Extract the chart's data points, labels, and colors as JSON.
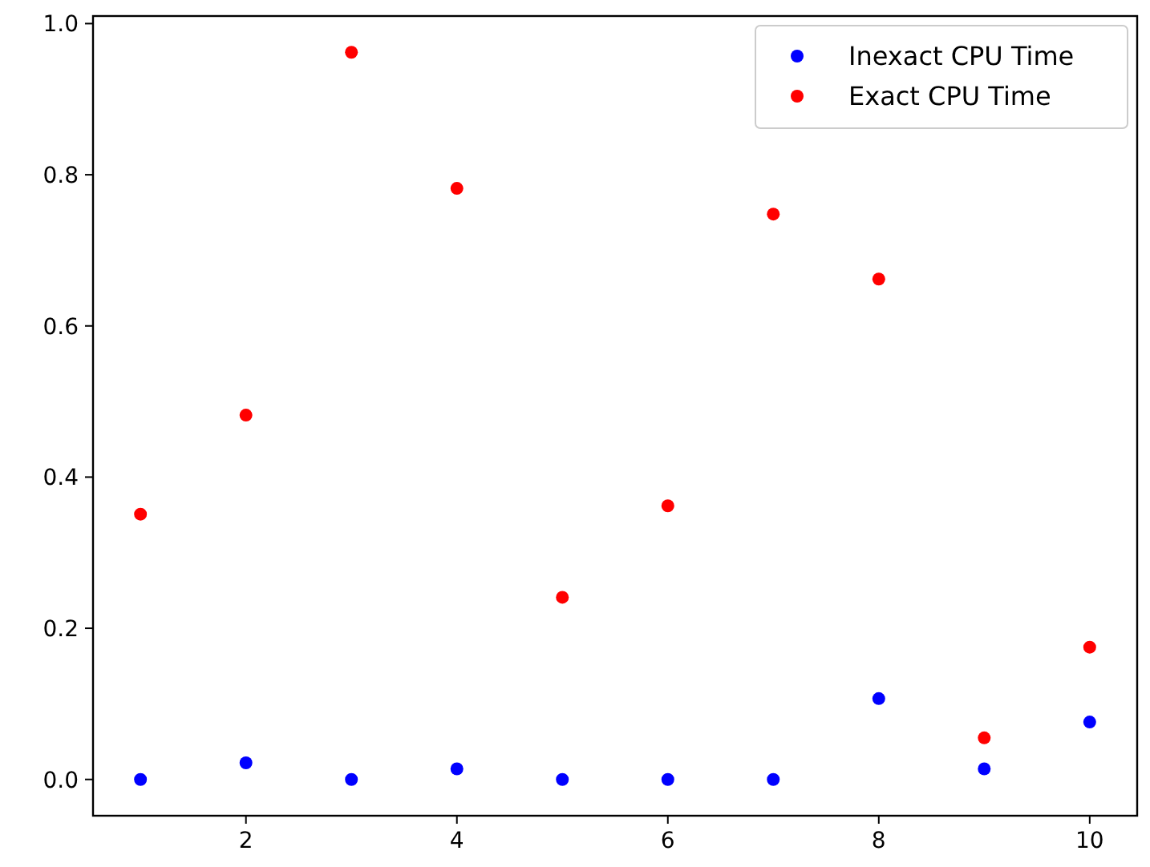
{
  "chart_data": {
    "type": "scatter",
    "x": [
      1,
      2,
      3,
      4,
      5,
      6,
      7,
      8,
      9,
      10
    ],
    "series": [
      {
        "name": "Inexact CPU Time",
        "color": "#0000ff",
        "values": [
          0,
          0.022,
          0,
          0.014,
          0,
          0,
          0,
          0.107,
          0.014,
          0.076
        ]
      },
      {
        "name": "Exact CPU Time",
        "color": "#ff0000",
        "values": [
          0.351,
          0.482,
          0.962,
          0.782,
          0.241,
          0.362,
          0.748,
          0.662,
          0.055,
          0.175
        ]
      }
    ],
    "xlim": [
      0.55,
      10.45
    ],
    "xticks": [
      2,
      4,
      6,
      8,
      10
    ],
    "ylim": [
      -0.048,
      1.01
    ],
    "yticks": [
      {
        "value": 0,
        "label": "0.0"
      },
      {
        "value": 0.2,
        "label": "0.2"
      },
      {
        "value": 0.4,
        "label": "0.4"
      },
      {
        "value": 0.6,
        "label": "0.6"
      },
      {
        "value": 0.8,
        "label": "0.8"
      },
      {
        "value": 1,
        "label": "1.0"
      }
    ],
    "marker": "circle",
    "legend": "top right",
    "grid": false
  }
}
